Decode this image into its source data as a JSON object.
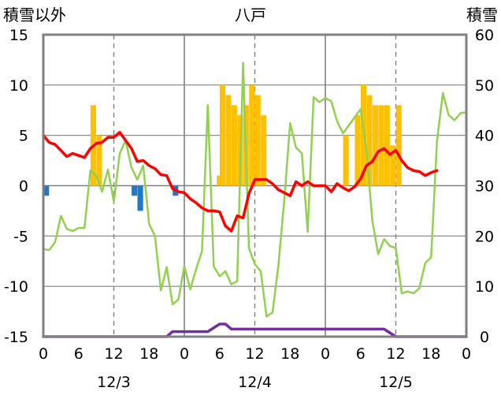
{
  "chart_data": {
    "type": "bar+line",
    "title": "八戸",
    "left_axis_title": "積雪以外",
    "right_axis_title": "積雪",
    "left_ylim": [
      -15,
      15
    ],
    "left_yticks": [
      15,
      10,
      5,
      0,
      -5,
      -10,
      -15
    ],
    "right_ylim": [
      0,
      60
    ],
    "right_yticks": [
      60,
      50,
      40,
      30,
      20,
      10,
      0
    ],
    "x_hours_range": [
      0,
      72
    ],
    "x_tick_labels": [
      "0",
      "6",
      "12",
      "18",
      "0",
      "6",
      "12",
      "18",
      "0",
      "6",
      "12",
      "18",
      "0"
    ],
    "day_labels": [
      "12/3",
      "12/4",
      "12/5"
    ],
    "grid": true,
    "colors": {
      "snowfall": "#FFC000",
      "precip": "#1F78C8",
      "temperature": "#FF0000",
      "wind": "#92D050",
      "snow_depth": "#7030A0"
    },
    "snowfall_bars": [
      {
        "h": 8.5,
        "v": 8
      },
      {
        "h": 9.5,
        "v": 5
      },
      {
        "h": 30,
        "v": 1
      },
      {
        "h": 30.5,
        "v": 10
      },
      {
        "h": 31.5,
        "v": 9
      },
      {
        "h": 32.5,
        "v": 8
      },
      {
        "h": 33.5,
        "v": 7
      },
      {
        "h": 34.5,
        "v": 8
      },
      {
        "h": 35.5,
        "v": 10
      },
      {
        "h": 36.5,
        "v": 9
      },
      {
        "h": 37.5,
        "v": 7
      },
      {
        "h": 51.5,
        "v": 5
      },
      {
        "h": 53.5,
        "v": 7
      },
      {
        "h": 54.5,
        "v": 10
      },
      {
        "h": 55.5,
        "v": 9
      },
      {
        "h": 56.5,
        "v": 8
      },
      {
        "h": 57.5,
        "v": 8
      },
      {
        "h": 58.5,
        "v": 8
      },
      {
        "h": 59.5,
        "v": 4
      },
      {
        "h": 60.5,
        "v": 8
      }
    ],
    "precip_bars": [
      {
        "h": 0.5,
        "v": -1
      },
      {
        "h": 15.5,
        "v": -1
      },
      {
        "h": 16.5,
        "v": -2.5
      },
      {
        "h": 22.5,
        "v": -1
      }
    ],
    "temperature": [
      [
        0,
        5.0
      ],
      [
        1,
        4.3
      ],
      [
        2,
        4.1
      ],
      [
        3,
        3.5
      ],
      [
        4,
        2.9
      ],
      [
        5,
        3.2
      ],
      [
        6,
        3.0
      ],
      [
        7,
        2.8
      ],
      [
        8,
        3.7
      ],
      [
        9,
        4.2
      ],
      [
        10,
        4.3
      ],
      [
        11,
        4.8
      ],
      [
        12,
        4.8
      ],
      [
        13,
        5.3
      ],
      [
        14,
        4.5
      ],
      [
        15,
        3.7
      ],
      [
        16,
        2.4
      ],
      [
        17,
        2.5
      ],
      [
        18,
        2.0
      ],
      [
        19,
        1.7
      ],
      [
        20,
        1.1
      ],
      [
        21,
        1.0
      ],
      [
        22,
        -0.3
      ],
      [
        23,
        -0.6
      ],
      [
        24,
        -0.7
      ],
      [
        25,
        -1.3
      ],
      [
        26,
        -1.7
      ],
      [
        27,
        -2.2
      ],
      [
        28,
        -2.5
      ],
      [
        29,
        -2.5
      ],
      [
        30,
        -2.6
      ],
      [
        31,
        -4.0
      ],
      [
        32,
        -4.5
      ],
      [
        33,
        -3.0
      ],
      [
        34,
        -3.2
      ],
      [
        35,
        -0.8
      ],
      [
        36,
        0.6
      ],
      [
        37,
        0.6
      ],
      [
        38,
        0.6
      ],
      [
        39,
        0.2
      ],
      [
        40,
        -0.4
      ],
      [
        41,
        -0.7
      ],
      [
        42,
        -1.0
      ],
      [
        43,
        0.4
      ],
      [
        44,
        0.0
      ],
      [
        45,
        0.4
      ],
      [
        46,
        0.0
      ],
      [
        47,
        0.0
      ],
      [
        48,
        0.0
      ],
      [
        49,
        -0.6
      ],
      [
        50,
        0.2
      ],
      [
        51,
        -0.2
      ],
      [
        52,
        -0.5
      ],
      [
        53,
        -0.1
      ],
      [
        54,
        0.7
      ],
      [
        55,
        2.0
      ],
      [
        56,
        2.4
      ],
      [
        57,
        3.4
      ],
      [
        58,
        3.7
      ],
      [
        59,
        3.1
      ],
      [
        60,
        3.5
      ],
      [
        61,
        2.5
      ],
      [
        62,
        1.8
      ],
      [
        63,
        1.5
      ],
      [
        64,
        1.4
      ],
      [
        65,
        1.0
      ],
      [
        66,
        1.3
      ],
      [
        67,
        1.5
      ]
    ],
    "wind": [
      [
        0,
        -6.3
      ],
      [
        1,
        -6.4
      ],
      [
        2,
        -5.6
      ],
      [
        3,
        -3.0
      ],
      [
        4,
        -4.3
      ],
      [
        5,
        -4.5
      ],
      [
        6,
        -4.2
      ],
      [
        7,
        -4.2
      ],
      [
        8,
        1.5
      ],
      [
        9,
        1.0
      ],
      [
        10,
        -0.6
      ],
      [
        11,
        1.6
      ],
      [
        12,
        -1.6
      ],
      [
        13,
        3.2
      ],
      [
        14,
        4.5
      ],
      [
        15,
        1.8
      ],
      [
        16,
        0.6
      ],
      [
        17,
        2.0
      ],
      [
        18,
        -3.8
      ],
      [
        19,
        -5.0
      ],
      [
        20,
        -10.4
      ],
      [
        21,
        -8.1
      ],
      [
        22,
        -11.8
      ],
      [
        23,
        -11.3
      ],
      [
        24,
        -8.0
      ],
      [
        25,
        -10.3
      ],
      [
        26,
        -8.3
      ],
      [
        27,
        -6.5
      ],
      [
        28,
        8.0
      ],
      [
        29,
        -8.0
      ],
      [
        30,
        -9.0
      ],
      [
        31,
        -8.5
      ],
      [
        32,
        -9.8
      ],
      [
        33,
        -9.5
      ],
      [
        34,
        12.2
      ],
      [
        35,
        -6.2
      ],
      [
        36,
        -7.8
      ],
      [
        37,
        -8.5
      ],
      [
        38,
        -13.0
      ],
      [
        39,
        -12.6
      ],
      [
        40,
        -8.0
      ],
      [
        41,
        -1.5
      ],
      [
        42,
        6.2
      ],
      [
        43,
        3.8
      ],
      [
        44,
        3.2
      ],
      [
        45,
        -4.6
      ],
      [
        46,
        8.8
      ],
      [
        47,
        8.3
      ],
      [
        48,
        8.7
      ],
      [
        49,
        8.4
      ],
      [
        50,
        6.4
      ],
      [
        51,
        5.2
      ],
      [
        52,
        6.0
      ],
      [
        53,
        6.8
      ],
      [
        54,
        7.6
      ],
      [
        55,
        3.5
      ],
      [
        56,
        -3.5
      ],
      [
        57,
        -6.8
      ],
      [
        58,
        -5.3
      ],
      [
        59,
        -6.0
      ],
      [
        60,
        -6.2
      ],
      [
        61,
        -10.7
      ],
      [
        62,
        -10.5
      ],
      [
        63,
        -10.7
      ],
      [
        64,
        -10.2
      ],
      [
        65,
        -7.7
      ],
      [
        66,
        -7.1
      ],
      [
        67,
        4.4
      ],
      [
        68,
        9.2
      ],
      [
        69,
        7.0
      ],
      [
        70,
        6.5
      ],
      [
        71,
        7.2
      ],
      [
        72,
        7.3
      ]
    ],
    "snow_depth": [
      [
        0,
        0
      ],
      [
        21,
        0
      ],
      [
        22,
        1
      ],
      [
        28,
        1
      ],
      [
        30,
        2.5
      ],
      [
        31,
        2.5
      ],
      [
        32,
        1.5
      ],
      [
        58,
        1.5
      ],
      [
        60,
        0
      ],
      [
        72,
        0
      ]
    ]
  }
}
